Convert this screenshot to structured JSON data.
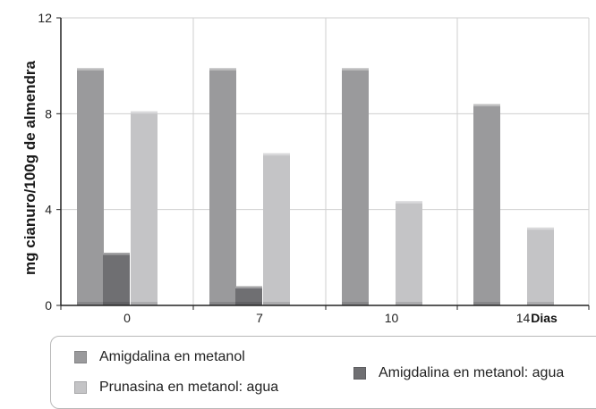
{
  "chart_data": {
    "type": "bar",
    "categories": [
      "0",
      "7",
      "10",
      "14"
    ],
    "x_unit_label": "Dias",
    "ylabel": "mg cianuro/100g de almendra",
    "ylim": [
      0,
      12
    ],
    "yticks": [
      "0",
      "4",
      "8",
      "12"
    ],
    "grid": true,
    "legend_position": "bottom",
    "series": [
      {
        "name": "Amigdalina en metanol",
        "values": [
          9.9,
          9.9,
          9.9,
          8.4
        ],
        "color": "#9a9a9c"
      },
      {
        "name": "Amigdalina en metanol: agua",
        "values": [
          2.2,
          0.8,
          0,
          0
        ],
        "color": "#6f6f72"
      },
      {
        "name": "Prunasina en metanol: agua",
        "values": [
          8.1,
          6.35,
          4.35,
          3.25
        ],
        "color": "#c4c4c6"
      }
    ]
  }
}
